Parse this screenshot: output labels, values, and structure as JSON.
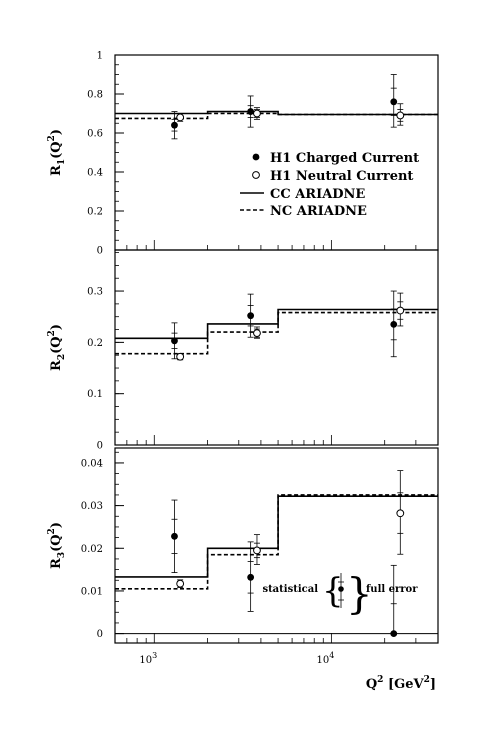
{
  "chart_data": {
    "type": "scatter",
    "x_axis": {
      "label_base": "Q",
      "label_sup": "2",
      "label_unit_open": " [GeV",
      "label_unit_sup": "2",
      "label_unit_close": "]",
      "scale": "log",
      "range": [
        600,
        40000
      ],
      "major_ticks": [
        {
          "value": 1000,
          "base": "10",
          "exp": "3"
        },
        {
          "value": 10000,
          "base": "10",
          "exp": "4"
        }
      ]
    },
    "legend": {
      "placement": "inside top panel, lower-right",
      "entries": [
        {
          "marker": "filled-circle",
          "label": "H1 Charged Current"
        },
        {
          "marker": "open-circle",
          "label": "H1 Neutral Current"
        },
        {
          "marker": "solid-line",
          "label": "CC ARIADNE"
        },
        {
          "marker": "dashed-line",
          "label": "NC ARIADNE"
        }
      ]
    },
    "error_note": {
      "left": "statistical",
      "right": "full error"
    },
    "panels": [
      {
        "ylabel": {
          "base": "R",
          "sub": "1",
          "arg": "(Q",
          "arg_sup": "2",
          "close": ")"
        },
        "ylim": [
          0,
          1
        ],
        "yticks": [
          {
            "value": 0,
            "label": "0"
          },
          {
            "value": 0.2,
            "label": "0.2"
          },
          {
            "value": 0.4,
            "label": "0.4"
          },
          {
            "value": 0.6,
            "label": "0.6"
          },
          {
            "value": 0.8,
            "label": "0.8"
          },
          {
            "value": 1,
            "label": "1"
          }
        ],
        "minor_step": 0.05,
        "series": [
          {
            "name": "H1 Charged Current",
            "marker": "filled",
            "points": [
              {
                "x": 1300,
                "y": 0.64,
                "stat": [
                  0.61,
                  0.67
                ],
                "full": [
                  0.57,
                  0.71
                ]
              },
              {
                "x": 3500,
                "y": 0.71,
                "stat": [
                  0.68,
                  0.74
                ],
                "full": [
                  0.63,
                  0.79
                ]
              },
              {
                "x": 22500,
                "y": 0.76,
                "stat": [
                  0.69,
                  0.83
                ],
                "full": [
                  0.63,
                  0.9
                ]
              }
            ]
          },
          {
            "name": "H1 Neutral Current",
            "marker": "open",
            "points": [
              {
                "x": 1400,
                "y": 0.68,
                "stat": [
                  0.67,
                  0.69
                ],
                "full": [
                  0.66,
                  0.7
                ]
              },
              {
                "x": 3800,
                "y": 0.7,
                "stat": [
                  0.68,
                  0.72
                ],
                "full": [
                  0.67,
                  0.73
                ]
              },
              {
                "x": 24500,
                "y": 0.69,
                "stat": [
                  0.66,
                  0.72
                ],
                "full": [
                  0.64,
                  0.75
                ]
              }
            ]
          }
        ],
        "models": [
          {
            "name": "CC ARIADNE",
            "style": "solid",
            "steps": [
              {
                "x0": 600,
                "x1": 2000,
                "y": 0.7
              },
              {
                "x0": 2000,
                "x1": 5000,
                "y": 0.71
              },
              {
                "x0": 5000,
                "x1": 40000,
                "y": 0.695
              }
            ]
          },
          {
            "name": "NC ARIADNE",
            "style": "dashed",
            "steps": [
              {
                "x0": 600,
                "x1": 2000,
                "y": 0.675
              },
              {
                "x0": 2000,
                "x1": 5000,
                "y": 0.7
              },
              {
                "x0": 5000,
                "x1": 40000,
                "y": 0.695
              }
            ]
          }
        ]
      },
      {
        "ylabel": {
          "base": "R",
          "sub": "2",
          "arg": "(Q",
          "arg_sup": "2",
          "close": ")"
        },
        "ylim": [
          0,
          0.38
        ],
        "yticks": [
          {
            "value": 0,
            "label": "0"
          },
          {
            "value": 0.1,
            "label": "0.1"
          },
          {
            "value": 0.2,
            "label": "0.2"
          },
          {
            "value": 0.3,
            "label": "0.3"
          }
        ],
        "minor_step": 0.025,
        "series": [
          {
            "name": "H1 Charged Current",
            "marker": "filled",
            "points": [
              {
                "x": 1300,
                "y": 0.203,
                "stat": [
                  0.188,
                  0.218
                ],
                "full": [
                  0.168,
                  0.238
                ]
              },
              {
                "x": 3500,
                "y": 0.252,
                "stat": [
                  0.232,
                  0.272
                ],
                "full": [
                  0.21,
                  0.294
                ]
              },
              {
                "x": 22500,
                "y": 0.235,
                "stat": [
                  0.205,
                  0.265
                ],
                "full": [
                  0.172,
                  0.3
                ]
              }
            ]
          },
          {
            "name": "H1 Neutral Current",
            "marker": "open",
            "points": [
              {
                "x": 1400,
                "y": 0.172,
                "stat": [
                  0.168,
                  0.176
                ],
                "full": [
                  0.166,
                  0.178
                ]
              },
              {
                "x": 3800,
                "y": 0.218,
                "stat": [
                  0.21,
                  0.226
                ],
                "full": [
                  0.208,
                  0.23
                ]
              },
              {
                "x": 24500,
                "y": 0.262,
                "stat": [
                  0.245,
                  0.279
                ],
                "full": [
                  0.232,
                  0.296
                ]
              }
            ]
          }
        ],
        "models": [
          {
            "name": "CC ARIADNE",
            "style": "solid",
            "steps": [
              {
                "x0": 600,
                "x1": 2000,
                "y": 0.208
              },
              {
                "x0": 2000,
                "x1": 5000,
                "y": 0.236
              },
              {
                "x0": 5000,
                "x1": 40000,
                "y": 0.264
              }
            ]
          },
          {
            "name": "NC ARIADNE",
            "style": "dashed",
            "steps": [
              {
                "x0": 600,
                "x1": 2000,
                "y": 0.178
              },
              {
                "x0": 2000,
                "x1": 5000,
                "y": 0.22
              },
              {
                "x0": 5000,
                "x1": 40000,
                "y": 0.258
              }
            ]
          }
        ]
      },
      {
        "ylabel": {
          "base": "R",
          "sub": "3",
          "arg": "(Q",
          "arg_sup": "2",
          "close": ")"
        },
        "ylim": [
          -0.0022,
          0.0435
        ],
        "yticks": [
          {
            "value": 0,
            "label": "0"
          },
          {
            "value": 0.01,
            "label": "0.01"
          },
          {
            "value": 0.02,
            "label": "0.02"
          },
          {
            "value": 0.03,
            "label": "0.03"
          },
          {
            "value": 0.04,
            "label": "0.04"
          }
        ],
        "minor_step": 0.0025,
        "series": [
          {
            "name": "H1 Charged Current",
            "marker": "filled",
            "points": [
              {
                "x": 1300,
                "y": 0.0228,
                "stat": [
                  0.0188,
                  0.0268
                ],
                "full": [
                  0.0143,
                  0.0313
                ]
              },
              {
                "x": 3500,
                "y": 0.0132,
                "stat": [
                  0.0095,
                  0.0169
                ],
                "full": [
                  0.0052,
                  0.0215
                ]
              },
              {
                "x": 22500,
                "y": 0.0,
                "stat": [
                  0.0,
                  0.007
                ],
                "full": [
                  0.0,
                  0.016
                ]
              }
            ]
          },
          {
            "name": "H1 Neutral Current",
            "marker": "open",
            "points": [
              {
                "x": 1400,
                "y": 0.0117,
                "stat": [
                  0.0112,
                  0.0122
                ],
                "full": [
                  0.0108,
                  0.0126
                ]
              },
              {
                "x": 3800,
                "y": 0.0195,
                "stat": [
                  0.0178,
                  0.0212
                ],
                "full": [
                  0.0162,
                  0.0232
                ]
              },
              {
                "x": 24500,
                "y": 0.0282,
                "stat": [
                  0.0235,
                  0.033
                ],
                "full": [
                  0.0186,
                  0.0382
                ]
              }
            ]
          }
        ],
        "models": [
          {
            "name": "CC ARIADNE",
            "style": "solid",
            "steps": [
              {
                "x0": 600,
                "x1": 2000,
                "y": 0.0133
              },
              {
                "x0": 2000,
                "x1": 5000,
                "y": 0.02
              },
              {
                "x0": 5000,
                "x1": 40000,
                "y": 0.0322
              }
            ]
          },
          {
            "name": "NC ARIADNE",
            "style": "dashed",
            "steps": [
              {
                "x0": 600,
                "x1": 2000,
                "y": 0.0105
              },
              {
                "x0": 2000,
                "x1": 5000,
                "y": 0.0185
              },
              {
                "x0": 5000,
                "x1": 40000,
                "y": 0.0325
              }
            ]
          }
        ]
      }
    ]
  }
}
